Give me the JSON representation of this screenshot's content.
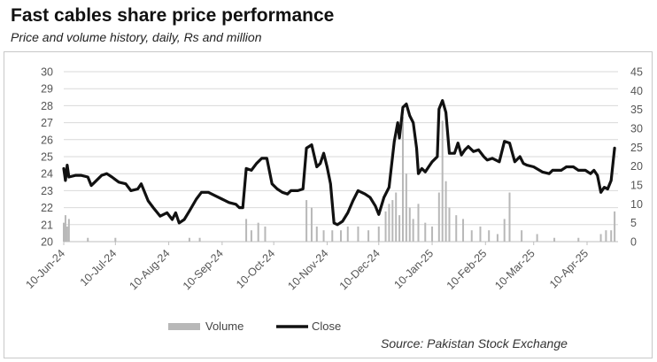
{
  "title": "Fast cables share price performance",
  "subtitle": "Price and volume history, daily, Rs and million",
  "source": "Source: Pakistan Stock Exchange",
  "chart_data": {
    "type": "line",
    "grid": true,
    "legend_position": "bottom",
    "x_tick_labels": [
      "10-Jun-24",
      "10-Jul-24",
      "10-Aug-24",
      "10-Sep-24",
      "10-Oct-24",
      "10-Nov-24",
      "10-Dec-24",
      "10-Jan-25",
      "10-Feb-25",
      "10-Mar-25",
      "10-Apr-25"
    ],
    "y_left": {
      "min": 20,
      "max": 30,
      "step": 1,
      "ticks": [
        "20",
        "21",
        "22",
        "23",
        "24",
        "25",
        "26",
        "27",
        "28",
        "29",
        "30"
      ]
    },
    "y_right": {
      "min": 0,
      "max": 45,
      "step": 5,
      "ticks": [
        "0",
        "5",
        "10",
        "15",
        "20",
        "25",
        "30",
        "35",
        "40",
        "45"
      ]
    },
    "series": [
      {
        "name": "Close",
        "axis": "left",
        "color": "#111111",
        "points": [
          [
            "2024-06-10",
            24.3
          ],
          [
            "2024-06-11",
            23.6
          ],
          [
            "2024-06-12",
            24.5
          ],
          [
            "2024-06-13",
            23.8
          ],
          [
            "2024-06-17",
            23.9
          ],
          [
            "2024-06-20",
            23.9
          ],
          [
            "2024-06-24",
            23.8
          ],
          [
            "2024-06-26",
            23.3
          ],
          [
            "2024-06-28",
            23.5
          ],
          [
            "2024-07-02",
            23.9
          ],
          [
            "2024-07-05",
            24.0
          ],
          [
            "2024-07-08",
            23.8
          ],
          [
            "2024-07-12",
            23.5
          ],
          [
            "2024-07-16",
            23.4
          ],
          [
            "2024-07-19",
            23.0
          ],
          [
            "2024-07-23",
            23.1
          ],
          [
            "2024-07-25",
            23.4
          ],
          [
            "2024-07-29",
            22.4
          ],
          [
            "2024-08-01",
            22.0
          ],
          [
            "2024-08-05",
            21.5
          ],
          [
            "2024-08-09",
            21.7
          ],
          [
            "2024-08-12",
            21.3
          ],
          [
            "2024-08-14",
            21.7
          ],
          [
            "2024-08-16",
            21.1
          ],
          [
            "2024-08-19",
            21.3
          ],
          [
            "2024-08-22",
            21.8
          ],
          [
            "2024-08-26",
            22.5
          ],
          [
            "2024-08-29",
            22.9
          ],
          [
            "2024-09-02",
            22.9
          ],
          [
            "2024-09-06",
            22.7
          ],
          [
            "2024-09-10",
            22.5
          ],
          [
            "2024-09-14",
            22.3
          ],
          [
            "2024-09-18",
            22.2
          ],
          [
            "2024-09-20",
            22.0
          ],
          [
            "2024-09-22",
            22.0
          ],
          [
            "2024-09-24",
            24.3
          ],
          [
            "2024-09-27",
            24.2
          ],
          [
            "2024-09-30",
            24.6
          ],
          [
            "2024-10-03",
            24.9
          ],
          [
            "2024-10-06",
            24.9
          ],
          [
            "2024-10-09",
            23.4
          ],
          [
            "2024-10-12",
            23.1
          ],
          [
            "2024-10-15",
            22.9
          ],
          [
            "2024-10-18",
            22.8
          ],
          [
            "2024-10-20",
            23.0
          ],
          [
            "2024-10-24",
            23.0
          ],
          [
            "2024-10-27",
            23.1
          ],
          [
            "2024-10-29",
            25.5
          ],
          [
            "2024-11-01",
            25.7
          ],
          [
            "2024-11-04",
            24.4
          ],
          [
            "2024-11-06",
            24.6
          ],
          [
            "2024-11-08",
            25.2
          ],
          [
            "2024-11-10",
            24.4
          ],
          [
            "2024-11-12",
            23.4
          ],
          [
            "2024-11-14",
            21.1
          ],
          [
            "2024-11-16",
            21.0
          ],
          [
            "2024-11-19",
            21.2
          ],
          [
            "2024-11-22",
            21.7
          ],
          [
            "2024-11-25",
            22.4
          ],
          [
            "2024-11-28",
            23.0
          ],
          [
            "2024-12-02",
            22.8
          ],
          [
            "2024-12-05",
            22.6
          ],
          [
            "2024-12-08",
            22.1
          ],
          [
            "2024-12-10",
            21.6
          ],
          [
            "2024-12-13",
            22.6
          ],
          [
            "2024-12-16",
            23.2
          ],
          [
            "2024-12-19",
            25.9
          ],
          [
            "2024-12-21",
            27.0
          ],
          [
            "2024-12-22",
            26.1
          ],
          [
            "2024-12-24",
            27.9
          ],
          [
            "2024-12-26",
            28.1
          ],
          [
            "2024-12-28",
            27.4
          ],
          [
            "2024-12-30",
            27.0
          ],
          [
            "2025-01-01",
            25.5
          ],
          [
            "2025-01-02",
            24.0
          ],
          [
            "2025-01-04",
            24.3
          ],
          [
            "2025-01-06",
            24.1
          ],
          [
            "2025-01-08",
            24.4
          ],
          [
            "2025-01-10",
            24.7
          ],
          [
            "2025-01-13",
            25.0
          ],
          [
            "2025-01-14",
            27.8
          ],
          [
            "2025-01-16",
            28.3
          ],
          [
            "2025-01-18",
            27.6
          ],
          [
            "2025-01-20",
            25.2
          ],
          [
            "2025-01-23",
            25.2
          ],
          [
            "2025-01-25",
            25.8
          ],
          [
            "2025-01-27",
            25.1
          ],
          [
            "2025-01-29",
            25.4
          ],
          [
            "2025-01-31",
            25.6
          ],
          [
            "2025-02-03",
            25.3
          ],
          [
            "2025-02-06",
            25.4
          ],
          [
            "2025-02-09",
            25.0
          ],
          [
            "2025-02-11",
            24.8
          ],
          [
            "2025-02-14",
            24.9
          ],
          [
            "2025-02-18",
            24.7
          ],
          [
            "2025-02-21",
            25.9
          ],
          [
            "2025-02-24",
            25.8
          ],
          [
            "2025-02-27",
            24.7
          ],
          [
            "2025-03-02",
            25.0
          ],
          [
            "2025-03-04",
            24.6
          ],
          [
            "2025-03-06",
            24.5
          ],
          [
            "2025-03-10",
            24.4
          ],
          [
            "2025-03-15",
            24.1
          ],
          [
            "2025-03-19",
            24.0
          ],
          [
            "2025-03-21",
            24.2
          ],
          [
            "2025-03-26",
            24.2
          ],
          [
            "2025-03-29",
            24.4
          ],
          [
            "2025-04-02",
            24.4
          ],
          [
            "2025-04-05",
            24.2
          ],
          [
            "2025-04-09",
            24.2
          ],
          [
            "2025-04-12",
            24.0
          ],
          [
            "2025-04-14",
            24.2
          ],
          [
            "2025-04-16",
            23.9
          ],
          [
            "2025-04-18",
            22.9
          ],
          [
            "2025-04-20",
            23.2
          ],
          [
            "2025-04-22",
            23.1
          ],
          [
            "2025-04-24",
            23.6
          ],
          [
            "2025-04-26",
            25.5
          ]
        ]
      },
      {
        "name": "Volume",
        "axis": "right",
        "color": "#b8b8b8",
        "points": [
          [
            "2024-06-10",
            5
          ],
          [
            "2024-06-11",
            7
          ],
          [
            "2024-06-12",
            4
          ],
          [
            "2024-06-13",
            6
          ],
          [
            "2024-06-24",
            1
          ],
          [
            "2024-07-10",
            1
          ],
          [
            "2024-08-22",
            1
          ],
          [
            "2024-08-28",
            1
          ],
          [
            "2024-09-24",
            6
          ],
          [
            "2024-09-27",
            3
          ],
          [
            "2024-10-01",
            5
          ],
          [
            "2024-10-05",
            4
          ],
          [
            "2024-10-29",
            11
          ],
          [
            "2024-11-01",
            9
          ],
          [
            "2024-11-04",
            4
          ],
          [
            "2024-11-08",
            3
          ],
          [
            "2024-11-13",
            3
          ],
          [
            "2024-11-18",
            3
          ],
          [
            "2024-11-22",
            4
          ],
          [
            "2024-11-28",
            4
          ],
          [
            "2024-12-04",
            3
          ],
          [
            "2024-12-10",
            4
          ],
          [
            "2024-12-14",
            8
          ],
          [
            "2024-12-16",
            10
          ],
          [
            "2024-12-18",
            11
          ],
          [
            "2024-12-20",
            13
          ],
          [
            "2024-12-22",
            7
          ],
          [
            "2024-12-24",
            33
          ],
          [
            "2024-12-26",
            18
          ],
          [
            "2024-12-28",
            9
          ],
          [
            "2024-12-30",
            6
          ],
          [
            "2025-01-02",
            10
          ],
          [
            "2025-01-06",
            5
          ],
          [
            "2025-01-10",
            4
          ],
          [
            "2025-01-14",
            13
          ],
          [
            "2025-01-16",
            32
          ],
          [
            "2025-01-18",
            16
          ],
          [
            "2025-01-20",
            9
          ],
          [
            "2025-01-24",
            7
          ],
          [
            "2025-01-28",
            6
          ],
          [
            "2025-02-02",
            3
          ],
          [
            "2025-02-07",
            4
          ],
          [
            "2025-02-12",
            3
          ],
          [
            "2025-02-17",
            2
          ],
          [
            "2025-02-21",
            6
          ],
          [
            "2025-02-24",
            13
          ],
          [
            "2025-03-03",
            3
          ],
          [
            "2025-03-12",
            2
          ],
          [
            "2025-03-22",
            1
          ],
          [
            "2025-04-05",
            1
          ],
          [
            "2025-04-18",
            2
          ],
          [
            "2025-04-21",
            3
          ],
          [
            "2025-04-24",
            3
          ],
          [
            "2025-04-26",
            8
          ]
        ]
      }
    ],
    "legend": [
      "Volume",
      "Close"
    ]
  }
}
